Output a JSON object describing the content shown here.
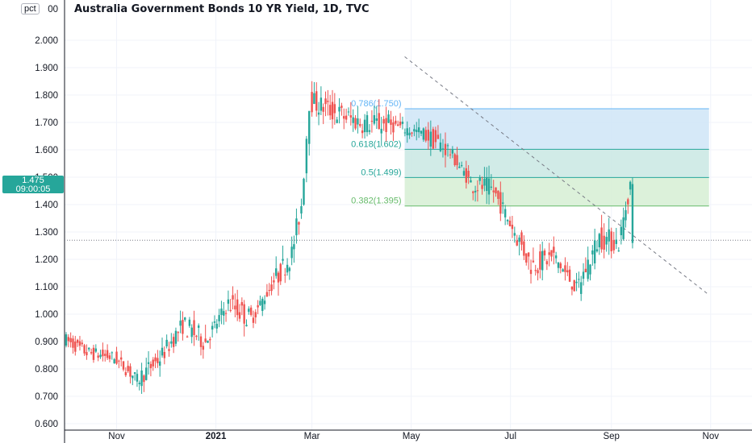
{
  "header": {
    "title": "Australia Government Bonds 10 YR Yield, 1D, TVC",
    "unit_badge": "pct",
    "top_tick_partial": "00"
  },
  "price_tag": {
    "value": "1.475",
    "countdown": "09:00:05"
  },
  "colors": {
    "up": "#26a69a",
    "down": "#ef5350",
    "fib_blue": "#cfe5f7",
    "fib_teal": "#c9e8e3",
    "fib_green": "#d6efd3",
    "fib_line": "#26a69a"
  },
  "chart_data": {
    "type": "candlestick",
    "title": "Australia Government Bonds 10 YR Yield, 1D, TVC",
    "xlabel": "",
    "ylabel": "",
    "ylim": [
      0.6,
      2.1
    ],
    "y_ticks": [
      "0.600",
      "0.700",
      "0.800",
      "0.900",
      "1.000",
      "1.100",
      "1.200",
      "1.300",
      "1.400",
      "1.500",
      "1.600",
      "1.700",
      "1.800",
      "1.900",
      "2.000"
    ],
    "x_ticks": [
      "Nov",
      "2021",
      "Mar",
      "May",
      "Jul",
      "Sep",
      "Nov"
    ],
    "x_tick_dates": [
      "2020-11-01",
      "2021-01-01",
      "2021-03-01",
      "2021-05-01",
      "2021-07-01",
      "2021-09-01",
      "2021-11-01"
    ],
    "grid": true,
    "series": [
      {
        "values": [
          [
            "2020-10-01",
            0.96,
            0.98,
            0.88,
            0.91
          ],
          [
            "2020-10-15",
            0.9,
            0.93,
            0.83,
            0.86
          ],
          [
            "2020-11-01",
            0.87,
            0.9,
            0.81,
            0.84
          ],
          [
            "2020-11-15",
            0.84,
            0.86,
            0.71,
            0.76
          ],
          [
            "2020-11-29",
            0.76,
            0.88,
            0.73,
            0.84
          ],
          [
            "2020-12-13",
            0.84,
            1.01,
            0.75,
            0.96
          ],
          [
            "2020-12-27",
            0.96,
            0.98,
            0.86,
            0.9
          ],
          [
            "2021-01-10",
            0.9,
            1.08,
            0.88,
            1.04
          ],
          [
            "2021-01-24",
            1.04,
            1.06,
            0.95,
            0.98
          ],
          [
            "2021-02-07",
            0.98,
            1.15,
            0.95,
            1.12
          ],
          [
            "2021-02-18",
            1.1,
            1.27,
            1.03,
            1.22
          ],
          [
            "2021-02-24",
            1.22,
            1.45,
            1.2,
            1.4
          ],
          [
            "2021-03-01",
            1.4,
            1.98,
            1.38,
            1.78
          ],
          [
            "2021-03-15",
            1.78,
            1.9,
            1.65,
            1.74
          ],
          [
            "2021-04-01",
            1.74,
            1.83,
            1.62,
            1.7
          ],
          [
            "2021-04-20",
            1.7,
            1.75,
            1.64,
            1.69
          ],
          [
            "2021-05-10",
            1.69,
            1.77,
            1.6,
            1.66
          ],
          [
            "2021-05-25",
            1.66,
            1.68,
            1.58,
            1.6
          ],
          [
            "2021-06-08",
            1.6,
            1.62,
            1.42,
            1.48
          ],
          [
            "2021-06-22",
            1.48,
            1.55,
            1.4,
            1.45
          ],
          [
            "2021-07-05",
            1.45,
            1.48,
            1.25,
            1.3
          ],
          [
            "2021-07-15",
            1.3,
            1.32,
            1.12,
            1.18
          ],
          [
            "2021-07-29",
            1.18,
            1.23,
            1.1,
            1.21
          ],
          [
            "2021-08-12",
            1.21,
            1.25,
            1.06,
            1.09
          ],
          [
            "2021-08-26",
            1.09,
            1.32,
            1.08,
            1.28
          ],
          [
            "2021-09-07",
            1.28,
            1.35,
            1.2,
            1.26
          ],
          [
            "2021-09-14",
            1.26,
            1.5,
            1.24,
            1.475
          ]
        ]
      }
    ],
    "last_price": 1.475,
    "price_line": 1.27,
    "fib_levels": [
      {
        "label": "0.786(1.750)",
        "value": 1.75
      },
      {
        "label": "0.618(1.602)",
        "value": 1.602
      },
      {
        "label": "0.5(1.499)",
        "value": 1.499
      },
      {
        "label": "0.382(1.395)",
        "value": 1.395
      }
    ],
    "fib_range": {
      "start": "2021-04-27",
      "end": "2021-10-31"
    },
    "trendline": {
      "start": [
        "2021-04-27",
        1.94
      ],
      "end": [
        "2021-10-31",
        1.07
      ]
    }
  }
}
